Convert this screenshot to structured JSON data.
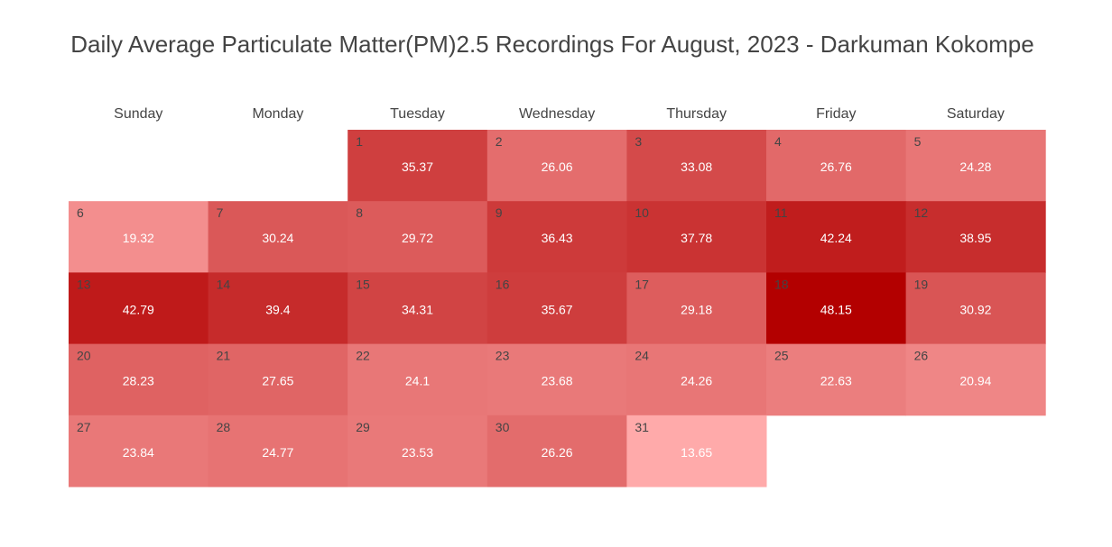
{
  "chart_data": {
    "type": "heatmap",
    "title": "Daily Average Particulate Matter(PM)2.5 Recordings For August, 2023 - Darkuman Kokompe",
    "weekdays": [
      "Sunday",
      "Monday",
      "Tuesday",
      "Wednesday",
      "Thursday",
      "Friday",
      "Saturday"
    ],
    "first_weekday_index": 2,
    "days": [
      1,
      2,
      3,
      4,
      5,
      6,
      7,
      8,
      9,
      10,
      11,
      12,
      13,
      14,
      15,
      16,
      17,
      18,
      19,
      20,
      21,
      22,
      23,
      24,
      25,
      26,
      27,
      28,
      29,
      30,
      31
    ],
    "values": [
      35.37,
      26.06,
      33.08,
      26.76,
      24.28,
      19.32,
      30.24,
      29.72,
      36.43,
      37.78,
      42.24,
      38.95,
      42.79,
      39.4,
      34.31,
      35.67,
      29.18,
      48.15,
      30.92,
      28.23,
      27.65,
      24.1,
      23.68,
      24.26,
      22.63,
      20.94,
      23.84,
      24.77,
      23.53,
      26.26,
      13.65
    ],
    "value_labels": [
      "35.37",
      "26.06",
      "33.08",
      "26.76",
      "24.28",
      "19.32",
      "30.24",
      "29.72",
      "36.43",
      "37.78",
      "42.24",
      "38.95",
      "42.79",
      "39.4",
      "34.31",
      "35.67",
      "29.18",
      "48.15",
      "30.92",
      "28.23",
      "27.65",
      "24.1",
      "23.68",
      "24.26",
      "22.63",
      "20.94",
      "23.84",
      "24.77",
      "23.53",
      "26.26",
      "13.65"
    ],
    "color_scale": {
      "low": "#ffaaaa",
      "high": "#b30000",
      "min": 13.65,
      "max": 48.15
    }
  }
}
